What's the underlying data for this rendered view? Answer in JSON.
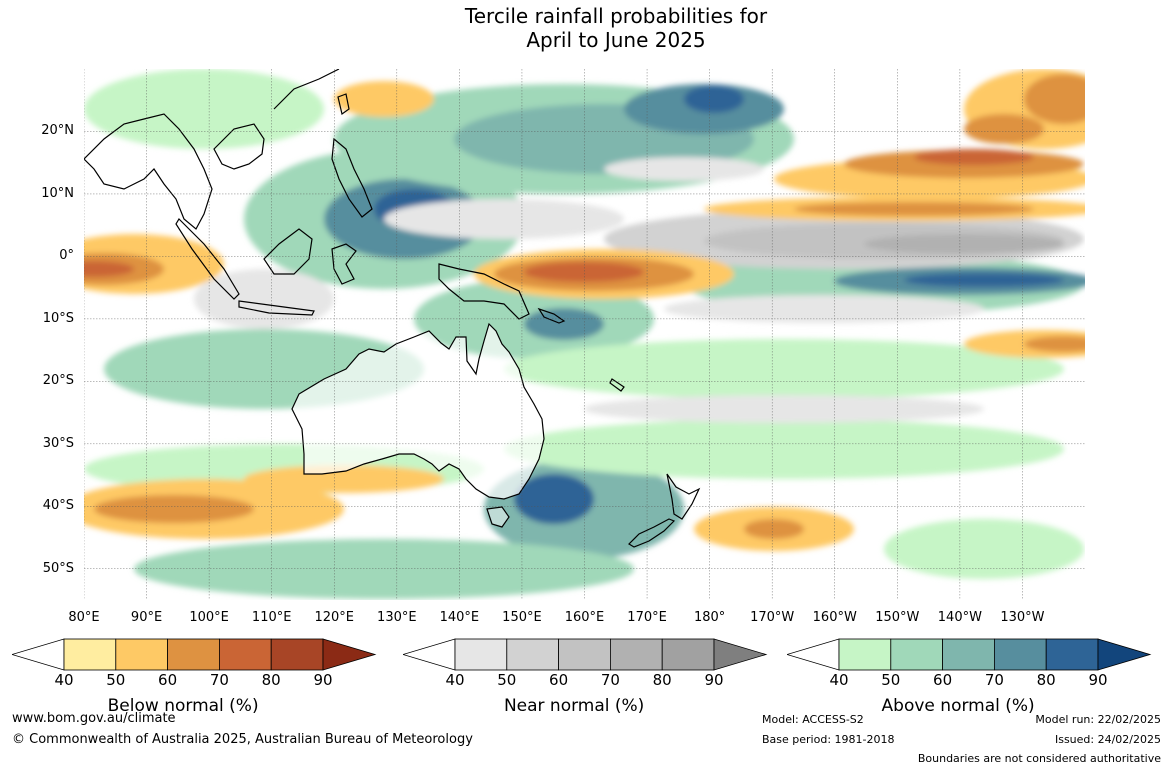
{
  "title_line1": "Tercile rainfall probabilities for",
  "title_line2": "April to June 2025",
  "map": {
    "lat_labels": [
      "20°N",
      "10°N",
      "0°",
      "10°S",
      "20°S",
      "30°S",
      "40°S",
      "50°S"
    ],
    "lon_labels": [
      "80°E",
      "90°E",
      "100°E",
      "110°E",
      "120°E",
      "130°E",
      "140°E",
      "150°E",
      "160°E",
      "170°E",
      "180°",
      "170°W",
      "160°W",
      "150°W",
      "140°W",
      "130°W"
    ],
    "extent": {
      "lon_min": 80,
      "lon_max": 240,
      "lat_min": -55,
      "lat_max": 30
    },
    "colors": {
      "below": [
        "#ffeda0",
        "#fec965",
        "#de9241",
        "#ca6535",
        "#a84526",
        "#8b2a15"
      ],
      "near": [
        "#e6e6e6",
        "#d2d2d2",
        "#c2c2c2",
        "#b1b1b1",
        "#a1a1a1",
        "#7f7f7f"
      ],
      "above": [
        "#c6f5c6",
        "#a0d8b9",
        "#7fb6ad",
        "#578e9e",
        "#2e6496",
        "#12457c"
      ]
    }
  },
  "colorbars": [
    {
      "title": "Below normal (%)",
      "ticks": [
        "40",
        "50",
        "60",
        "70",
        "80",
        "90"
      ],
      "scheme": "below"
    },
    {
      "title": "Near normal (%)",
      "ticks": [
        "40",
        "50",
        "60",
        "70",
        "80",
        "90"
      ],
      "scheme": "near"
    },
    {
      "title": "Above normal (%)",
      "ticks": [
        "40",
        "50",
        "60",
        "70",
        "80",
        "90"
      ],
      "scheme": "above"
    }
  ],
  "footer": {
    "website": "www.bom.gov.au/climate",
    "copyright": "© Commonwealth of Australia 2025, Australian Bureau of Meteorology",
    "model": "Model: ACCESS-S2",
    "base_period": "Base period: 1981-2018",
    "model_run": "Model run: 22/02/2025",
    "issued": "Issued: 24/02/2025",
    "disclaimer": "Boundaries are not considered authoritative"
  }
}
